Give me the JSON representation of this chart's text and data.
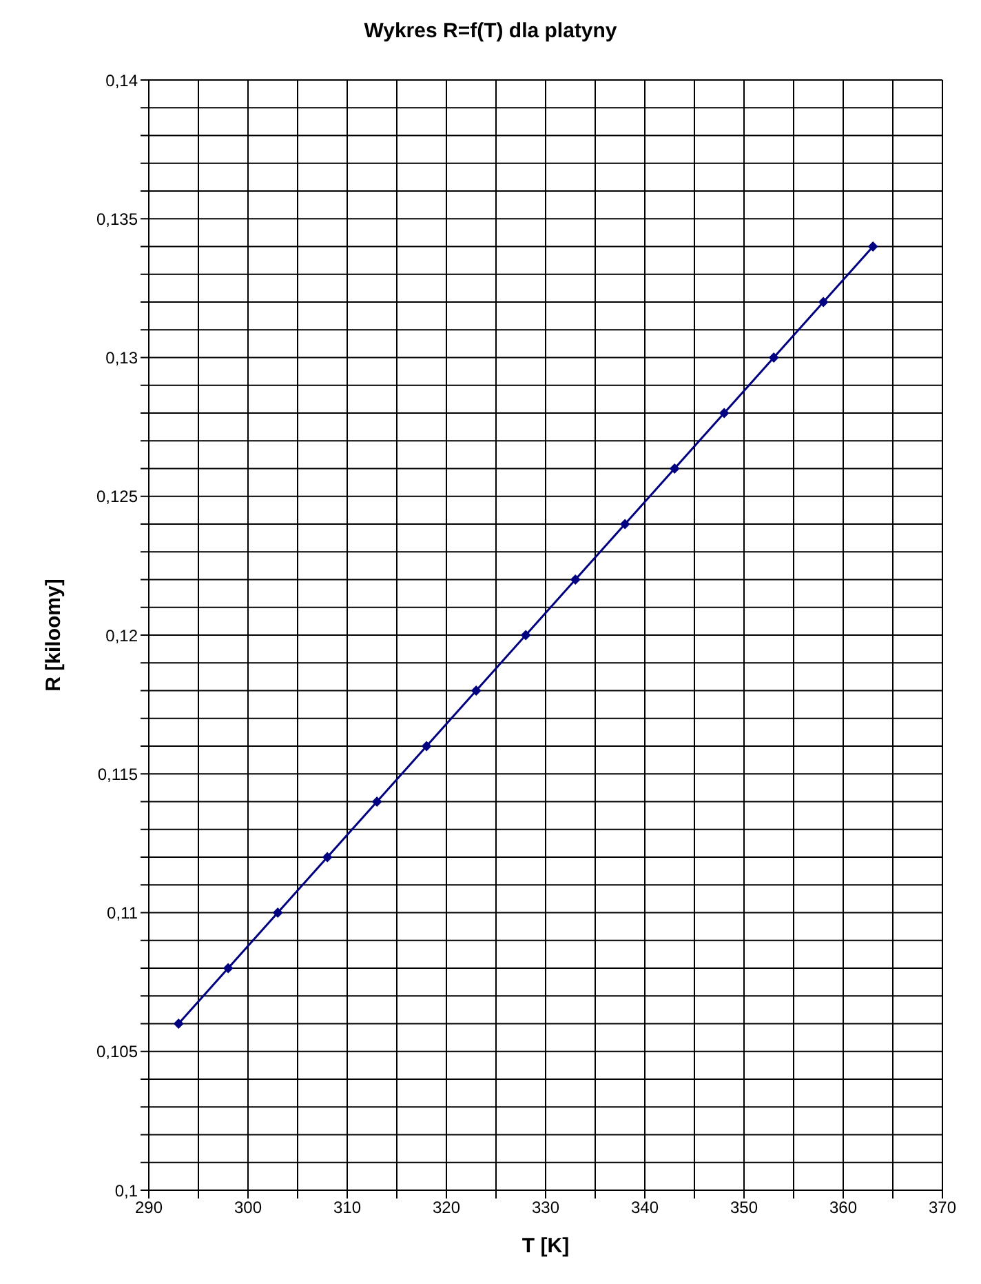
{
  "chart_data": {
    "type": "line",
    "title": "Wykres R=f(T) dla platyny",
    "xlabel": "T [K]",
    "ylabel": "R [kiloomy]",
    "x": [
      293,
      298,
      303,
      308,
      313,
      318,
      323,
      328,
      333,
      338,
      343,
      348,
      353,
      358,
      363
    ],
    "series": [
      {
        "color": "#000080",
        "values": [
          0.106,
          0.108,
          0.11,
          0.112,
          0.114,
          0.116,
          0.118,
          0.12,
          0.122,
          0.124,
          0.126,
          0.128,
          0.13,
          0.132,
          0.134
        ]
      }
    ],
    "xlim": [
      290,
      370
    ],
    "xticks": [
      290,
      {
        "value": 295,
        "label": null
      },
      300,
      {
        "value": 305,
        "label": null
      },
      310,
      {
        "value": 315,
        "label": null
      },
      320,
      {
        "value": 325,
        "label": null
      },
      330,
      {
        "value": 335,
        "label": null
      },
      340,
      {
        "value": 345,
        "label": null
      },
      350,
      {
        "value": 355,
        "label": null
      },
      360,
      {
        "value": 365,
        "label": null
      },
      370
    ],
    "ylim": [
      0.1,
      0.14
    ],
    "yticks": [
      {
        "value": 0.1,
        "label": "0,1"
      },
      {
        "value": 0.101,
        "label": null
      },
      {
        "value": 0.102,
        "label": null
      },
      {
        "value": 0.103,
        "label": null
      },
      {
        "value": 0.104,
        "label": null
      },
      {
        "value": 0.105,
        "label": "0,105"
      },
      {
        "value": 0.106,
        "label": null
      },
      {
        "value": 0.107,
        "label": null
      },
      {
        "value": 0.108,
        "label": null
      },
      {
        "value": 0.109,
        "label": null
      },
      {
        "value": 0.11,
        "label": "0,11"
      },
      {
        "value": 0.111,
        "label": null
      },
      {
        "value": 0.112,
        "label": null
      },
      {
        "value": 0.113,
        "label": null
      },
      {
        "value": 0.114,
        "label": null
      },
      {
        "value": 0.115,
        "label": "0,115"
      },
      {
        "value": 0.116,
        "label": null
      },
      {
        "value": 0.117,
        "label": null
      },
      {
        "value": 0.118,
        "label": null
      },
      {
        "value": 0.119,
        "label": null
      },
      {
        "value": 0.12,
        "label": "0,12"
      },
      {
        "value": 0.121,
        "label": null
      },
      {
        "value": 0.122,
        "label": null
      },
      {
        "value": 0.123,
        "label": null
      },
      {
        "value": 0.124,
        "label": null
      },
      {
        "value": 0.125,
        "label": "0,125"
      },
      {
        "value": 0.126,
        "label": null
      },
      {
        "value": 0.127,
        "label": null
      },
      {
        "value": 0.128,
        "label": null
      },
      {
        "value": 0.129,
        "label": null
      },
      {
        "value": 0.13,
        "label": "0,13"
      },
      {
        "value": 0.131,
        "label": null
      },
      {
        "value": 0.132,
        "label": null
      },
      {
        "value": 0.133,
        "label": null
      },
      {
        "value": 0.134,
        "label": null
      },
      {
        "value": 0.135,
        "label": "0,135"
      },
      {
        "value": 0.136,
        "label": null
      },
      {
        "value": 0.137,
        "label": null
      },
      {
        "value": 0.138,
        "label": null
      },
      {
        "value": 0.139,
        "label": null
      },
      {
        "value": 0.14,
        "label": "0,14"
      }
    ],
    "grid": true,
    "marker": "diamond",
    "line_style": "solid",
    "legend": false
  }
}
